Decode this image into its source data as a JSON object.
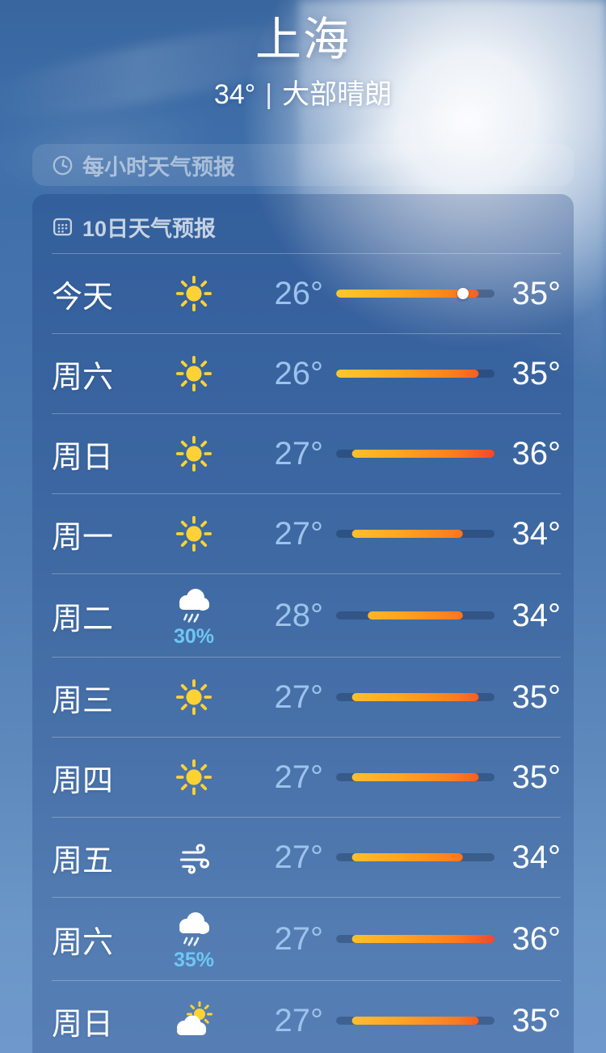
{
  "header": {
    "city": "上海",
    "current_temp": "34°",
    "separator": "|",
    "condition": "大部晴朗"
  },
  "sections": {
    "hourly": {
      "label": "每小时天气预报",
      "icon": "clock-icon"
    },
    "ten_day": {
      "label": "10日天气预报",
      "icon": "calendar-icon"
    }
  },
  "colors": {
    "bar_gradient": [
      "#ffc732",
      "#ffa61f",
      "#fb7d1e",
      "#f4472c"
    ],
    "bar_track": "rgba(14,34,64,0.30)",
    "low_temp_text": "#9dc3ec",
    "high_temp_text": "#ffffff",
    "precip_text": "#6ec7f3",
    "sun_icon": "#ffd233",
    "cloud_icon": "#ffffff"
  },
  "forecast": {
    "range_min": 26,
    "range_max": 36,
    "days": [
      {
        "day": "今天",
        "icon": "sun",
        "low": 26,
        "high": 35,
        "low_label": "26°",
        "high_label": "35°",
        "current": 34
      },
      {
        "day": "周六",
        "icon": "sun",
        "low": 26,
        "high": 35,
        "low_label": "26°",
        "high_label": "35°"
      },
      {
        "day": "周日",
        "icon": "sun",
        "low": 27,
        "high": 36,
        "low_label": "27°",
        "high_label": "36°"
      },
      {
        "day": "周一",
        "icon": "sun",
        "low": 27,
        "high": 34,
        "low_label": "27°",
        "high_label": "34°"
      },
      {
        "day": "周二",
        "icon": "rain",
        "low": 28,
        "high": 34,
        "low_label": "28°",
        "high_label": "34°",
        "precip": "30%"
      },
      {
        "day": "周三",
        "icon": "sun",
        "low": 27,
        "high": 35,
        "low_label": "27°",
        "high_label": "35°"
      },
      {
        "day": "周四",
        "icon": "sun",
        "low": 27,
        "high": 35,
        "low_label": "27°",
        "high_label": "35°"
      },
      {
        "day": "周五",
        "icon": "wind",
        "low": 27,
        "high": 34,
        "low_label": "27°",
        "high_label": "34°"
      },
      {
        "day": "周六",
        "icon": "rain",
        "low": 27,
        "high": 36,
        "low_label": "27°",
        "high_label": "36°",
        "precip": "35%"
      },
      {
        "day": "周日",
        "icon": "partly-cloudy",
        "low": 27,
        "high": 35,
        "low_label": "27°",
        "high_label": "35°"
      }
    ]
  }
}
